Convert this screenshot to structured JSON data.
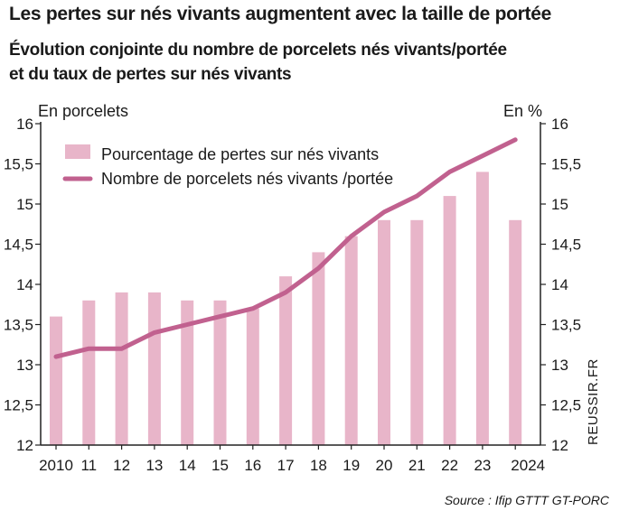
{
  "header": {
    "title": "Les pertes sur nés vivants augmentent avec la taille de portée",
    "subtitle_line1": "Évolution conjointe du nombre de porcelets nés vivants/portée",
    "subtitle_line2": "et du taux de pertes sur nés vivants"
  },
  "credit": "REUSSIR.FR",
  "source": "Source : Ifip GTTT GT-PORC",
  "colors": {
    "bar": "#e8b5c9",
    "line": "#c1618f",
    "axis": "#222222"
  },
  "chart_data": {
    "type": "bar",
    "categories": [
      "2010",
      "11",
      "12",
      "13",
      "14",
      "15",
      "16",
      "17",
      "18",
      "19",
      "20",
      "21",
      "22",
      "23",
      "2024"
    ],
    "left_axis_label": "En porcelets",
    "right_axis_label": "En %",
    "ylim": [
      12,
      16
    ],
    "y_ticks": [
      "12",
      "12,5",
      "13",
      "13,5",
      "14",
      "14,5",
      "15",
      "15,5",
      "16"
    ],
    "grid": false,
    "legend_position": "top-left",
    "series": [
      {
        "name": "Pourcentage de pertes sur nés vivants",
        "kind": "bar",
        "axis": "right",
        "values": [
          13.6,
          13.8,
          13.9,
          13.9,
          13.8,
          13.8,
          13.7,
          14.1,
          14.4,
          14.6,
          14.8,
          14.8,
          15.1,
          15.4,
          14.8
        ]
      },
      {
        "name": "Nombre de porcelets nés vivants /portée",
        "kind": "line",
        "axis": "left",
        "values": [
          13.1,
          13.2,
          13.2,
          13.4,
          13.5,
          13.6,
          13.7,
          13.9,
          14.2,
          14.6,
          14.9,
          15.1,
          15.4,
          15.6,
          15.8
        ]
      }
    ]
  }
}
